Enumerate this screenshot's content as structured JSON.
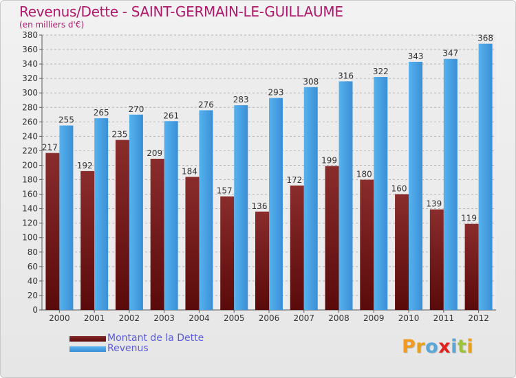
{
  "chart_data": {
    "type": "bar",
    "title": "Revenus/Dette - SAINT-GERMAIN-LE-GUILLAUME",
    "subtitle": "(en milliers d'€)",
    "categories": [
      "2000",
      "2001",
      "2002",
      "2003",
      "2004",
      "2005",
      "2006",
      "2007",
      "2008",
      "2009",
      "2010",
      "2011",
      "2012"
    ],
    "series": [
      {
        "name": "Montant de la Dette",
        "color": "#7a1c1c",
        "values": [
          217,
          192,
          235,
          209,
          184,
          157,
          136,
          172,
          199,
          180,
          160,
          139,
          119
        ]
      },
      {
        "name": "Revenus",
        "color": "#3f9fe3",
        "values": [
          255,
          265,
          270,
          261,
          276,
          283,
          293,
          308,
          316,
          322,
          343,
          347,
          368
        ]
      }
    ],
    "ylim": [
      0,
      380
    ],
    "ytick_step": 20,
    "grid": true,
    "legend_position": "bottom-left"
  },
  "brand": {
    "logo_letters": [
      "P",
      "r",
      "o",
      "x",
      "i",
      "t",
      "i"
    ],
    "logo_colors": [
      "#f29a1d",
      "#e8a01a",
      "#5aa7d8",
      "#e2211c",
      "#5aa7d8",
      "#9dc33b",
      "#e8a01a"
    ]
  }
}
